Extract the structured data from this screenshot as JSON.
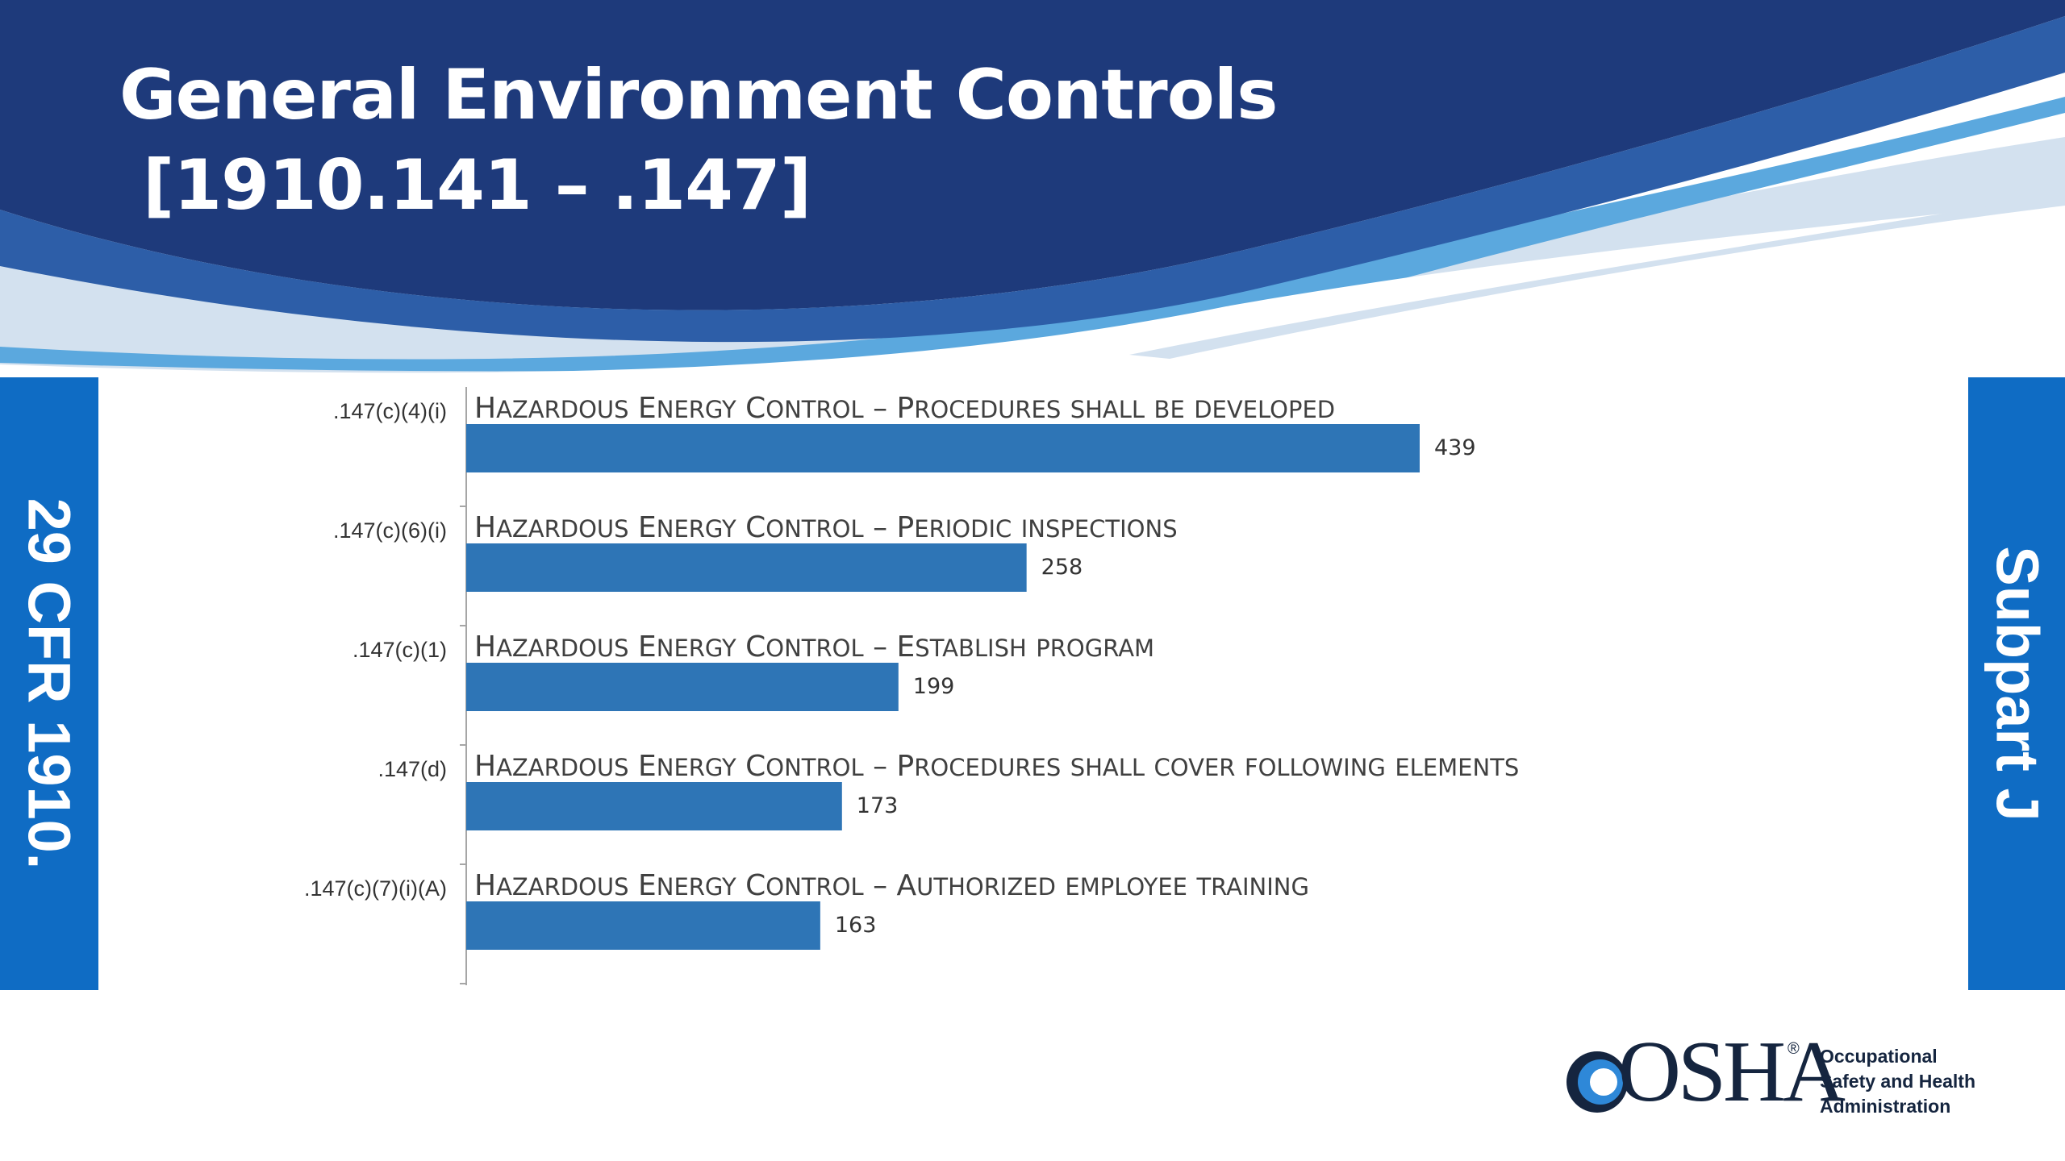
{
  "slide": {
    "title": "General Environment Controls\n [1910.141 – .147]",
    "left_band_label": "29 CFR 1910.",
    "right_band_label": "Subpart J"
  },
  "colors": {
    "header_navy": "#1e3a7b",
    "wave_light_blue": "#5ba8de",
    "wave_pale_blue": "#d3e1ef",
    "bar_blue": "#2e75b6",
    "side_band_blue": "#0f6cc4"
  },
  "chart_data": {
    "type": "bar",
    "orientation": "horizontal",
    "categories": [
      ".147(c)(4)(i)",
      ".147(c)(6)(i)",
      ".147(c)(1)",
      ".147(d)",
      ".147(c)(7)(i)(A)"
    ],
    "bar_titles": [
      {
        "prefix": "Hazardous Energy Control – ",
        "rest": "Procedures shall be developed"
      },
      {
        "prefix": "Hazardous Energy Control – ",
        "rest": "Periodic inspections"
      },
      {
        "prefix": "Hazardous Energy Control – ",
        "rest": "Establish program"
      },
      {
        "prefix": "Hazardous Energy Control – ",
        "rest": "Procedures shall cover following elements"
      },
      {
        "prefix": "Hazardous Energy Control – ",
        "rest": "Authorized employee training"
      }
    ],
    "values": [
      439,
      258,
      199,
      173,
      163
    ],
    "xlim": [
      0,
      439
    ],
    "grid": false,
    "legend": "none"
  },
  "logo": {
    "wordmark": "OSHA",
    "registered": "®",
    "org_lines": [
      "Occupational",
      "Safety and Health",
      "Administration"
    ]
  }
}
